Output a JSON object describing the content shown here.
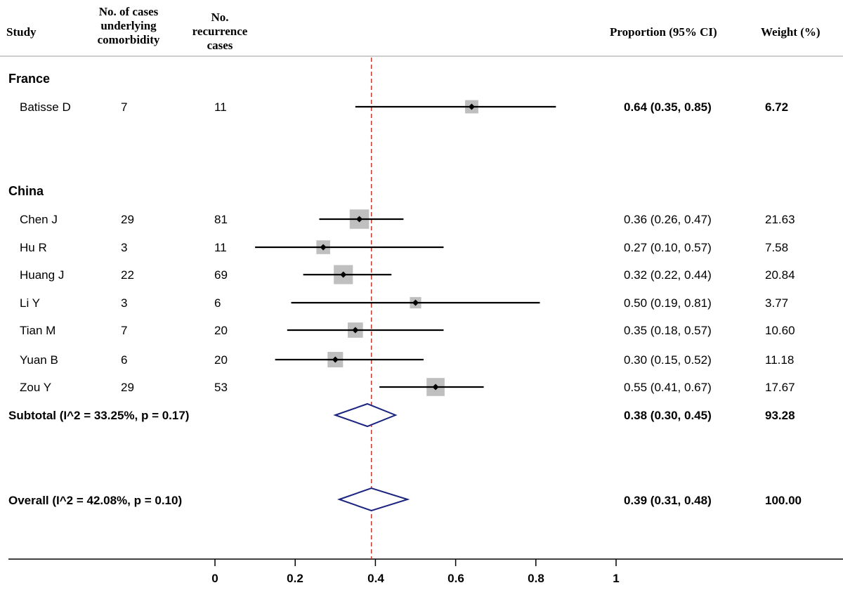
{
  "chart_data": {
    "type": "forest",
    "headers": {
      "study": "Study",
      "cases": [
        "No. of cases",
        "underlying",
        "comorbidity"
      ],
      "recurrence": [
        "No.",
        "recurrence",
        "cases"
      ],
      "proportion": "Proportion (95% CI)",
      "weight": "Weight (%)"
    },
    "groups": [
      {
        "name": "France",
        "studies": [
          {
            "study": "Batisse D",
            "cases": "7",
            "recurrence": "11",
            "est": 0.64,
            "lo": 0.35,
            "hi": 0.85,
            "ci_text": "0.64 (0.35, 0.85)",
            "weight": "6.72"
          }
        ]
      },
      {
        "name": "China",
        "studies": [
          {
            "study": "Chen J",
            "cases": "29",
            "recurrence": "81",
            "est": 0.36,
            "lo": 0.26,
            "hi": 0.47,
            "ci_text": "0.36 (0.26, 0.47)",
            "weight": "21.63"
          },
          {
            "study": "Hu R",
            "cases": "3",
            "recurrence": "11",
            "est": 0.27,
            "lo": 0.1,
            "hi": 0.57,
            "ci_text": "0.27 (0.10, 0.57)",
            "weight": "7.58"
          },
          {
            "study": "Huang J",
            "cases": "22",
            "recurrence": "69",
            "est": 0.32,
            "lo": 0.22,
            "hi": 0.44,
            "ci_text": "0.32 (0.22, 0.44)",
            "weight": "20.84"
          },
          {
            "study": "Li Y",
            "cases": "3",
            "recurrence": "6",
            "est": 0.5,
            "lo": 0.19,
            "hi": 0.81,
            "ci_text": "0.50 (0.19, 0.81)",
            "weight": "3.77"
          },
          {
            "study": "Tian M",
            "cases": "7",
            "recurrence": "20",
            "est": 0.35,
            "lo": 0.18,
            "hi": 0.57,
            "ci_text": "0.35 (0.18, 0.57)",
            "weight": "10.60"
          },
          {
            "study": "Yuan B",
            "cases": "6",
            "recurrence": "20",
            "est": 0.3,
            "lo": 0.15,
            "hi": 0.52,
            "ci_text": "0.30 (0.15, 0.52)",
            "weight": "11.18"
          },
          {
            "study": "Zou Y",
            "cases": "29",
            "recurrence": "53",
            "est": 0.55,
            "lo": 0.41,
            "hi": 0.67,
            "ci_text": "0.55 (0.41, 0.67)",
            "weight": "17.67"
          }
        ],
        "subtotal": {
          "label": "Subtotal  (I^2 = 33.25%, p = 0.17)",
          "est": 0.38,
          "lo": 0.3,
          "hi": 0.45,
          "ci_text": "0.38 (0.30, 0.45)",
          "weight": "93.28"
        }
      }
    ],
    "overall": {
      "label": "Overall  (I^2 = 42.08%, p = 0.10)",
      "est": 0.39,
      "lo": 0.31,
      "hi": 0.48,
      "ci_text": "0.39 (0.31, 0.48)",
      "weight": "100.00"
    },
    "reference_line": 0.39,
    "xaxis": {
      "min": 0,
      "max": 1,
      "ticks": [
        0,
        0.2,
        0.4,
        0.6,
        0.8,
        1
      ],
      "tick_labels": [
        "0",
        "0.2",
        "0.4",
        "0.6",
        "0.8",
        "1"
      ]
    },
    "colors": {
      "marker_box": "#bfbfbf",
      "diamond": "#1a237e",
      "reference": "#c0392b",
      "line": "#000000"
    }
  }
}
